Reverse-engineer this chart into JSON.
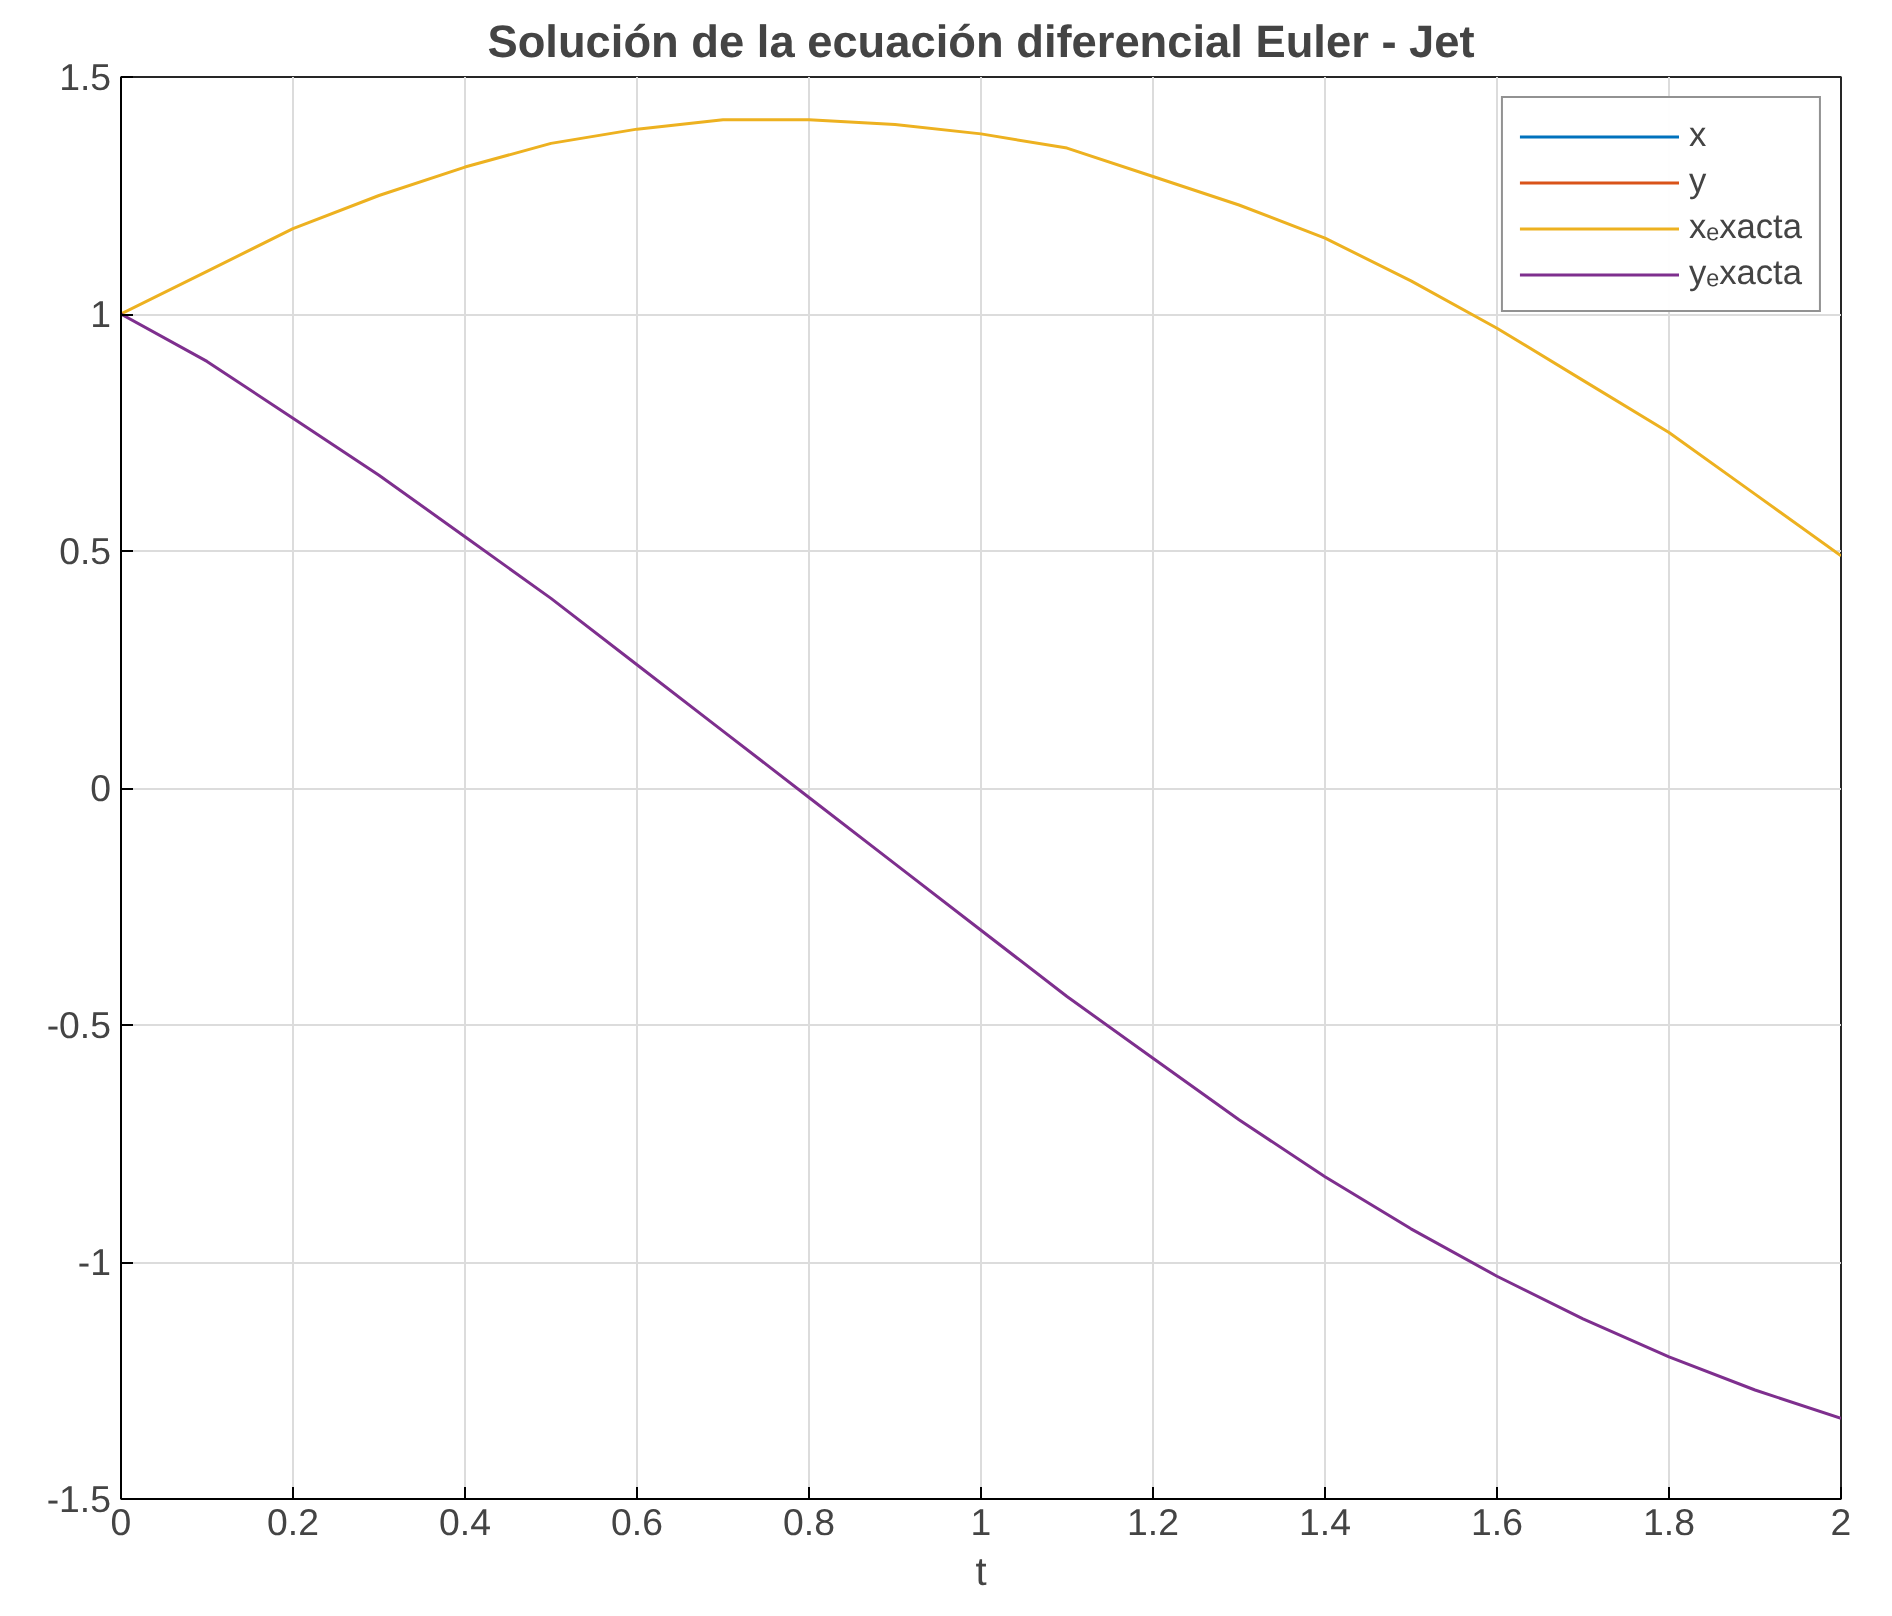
{
  "chart_data": {
    "type": "line",
    "title": "Solución de la ecuación diferencial Euler - Jet",
    "xlabel": "t",
    "x": [
      0,
      0.1,
      0.2,
      0.3,
      0.4,
      0.5,
      0.6,
      0.7,
      0.8,
      0.9,
      1.0,
      1.1,
      1.2,
      1.3,
      1.4,
      1.5,
      1.6,
      1.7,
      1.8,
      1.9,
      2.0
    ],
    "series": [
      {
        "name": "x",
        "color": "#0072bd",
        "values": [
          null,
          null,
          null,
          null,
          null,
          null,
          null,
          null,
          null,
          null,
          null,
          null,
          null,
          null,
          null,
          null,
          null,
          null,
          null,
          null,
          null
        ]
      },
      {
        "name": "y",
        "color": "#d95319",
        "values": [
          null,
          null,
          null,
          null,
          null,
          null,
          null,
          null,
          null,
          null,
          null,
          null,
          null,
          null,
          null,
          null,
          null,
          null,
          null,
          null,
          null
        ]
      },
      {
        "name": "xₑxacta",
        "color": "#edb120",
        "values": [
          1,
          1.09,
          1.18,
          1.25,
          1.31,
          1.36,
          1.39,
          1.41,
          1.41,
          1.4,
          1.38,
          1.35,
          1.29,
          1.23,
          1.16,
          1.07,
          0.97,
          0.86,
          0.75,
          0.62,
          0.49
        ]
      },
      {
        "name": "yₑxacta",
        "color": "#7e2f8e",
        "values": [
          1,
          0.9,
          0.78,
          0.66,
          0.53,
          0.4,
          0.26,
          0.12,
          -0.02,
          -0.16,
          -0.3,
          -0.44,
          -0.57,
          -0.7,
          -0.82,
          -0.93,
          -1.03,
          -1.12,
          -1.2,
          -1.27,
          -1.33
        ]
      }
    ],
    "xlim": [
      0,
      2
    ],
    "xticks": [
      0,
      0.2,
      0.4,
      0.6,
      0.8,
      1,
      1.2,
      1.4,
      1.6,
      1.8,
      2
    ],
    "ylim": [
      -1.5,
      1.5
    ],
    "yticks": [
      -1.5,
      -1,
      -0.5,
      0,
      0.5,
      1,
      1.5
    ],
    "grid": true,
    "legend": "top right"
  }
}
